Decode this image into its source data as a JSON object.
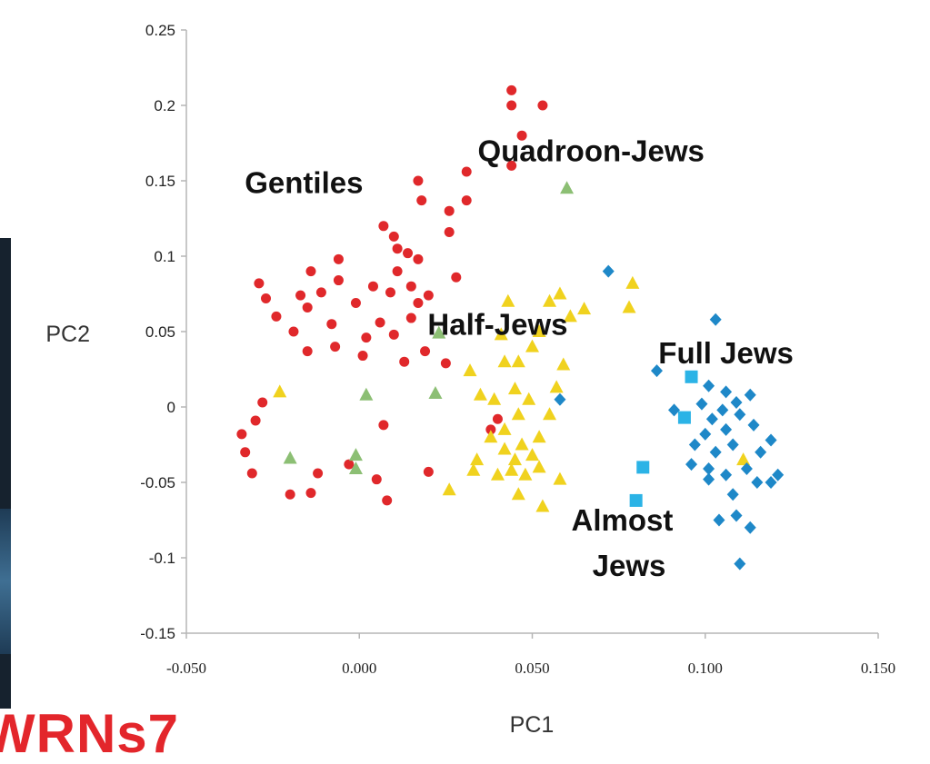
{
  "background_fragment": {
    "text": "WRNs7",
    "color": "#e3262b"
  },
  "chart_data": {
    "type": "scatter",
    "xlabel": "PC1",
    "ylabel": "PC2",
    "xlim": [
      -0.05,
      0.15
    ],
    "ylim": [
      -0.15,
      0.25
    ],
    "x_ticks": [
      "-0.050",
      "0.000",
      "0.050",
      "0.100",
      "0.150"
    ],
    "y_ticks": [
      "0.25",
      "0.2",
      "0.15",
      "0.1",
      "0.05",
      "0",
      "-0.05",
      "-0.1",
      "-0.15"
    ],
    "grid": false,
    "legend": "none",
    "annotations": [
      {
        "text": "Gentiles",
        "x": -0.016,
        "y": 0.142
      },
      {
        "text": "Quadroon-Jews",
        "x": 0.067,
        "y": 0.163
      },
      {
        "text": "Half-Jews",
        "x": 0.04,
        "y": 0.048
      },
      {
        "text": "Full Jews",
        "x": 0.106,
        "y": 0.029
      },
      {
        "text": "Almost",
        "x": 0.076,
        "y": -0.082
      },
      {
        "text": "Jews",
        "x": 0.078,
        "y": -0.112
      }
    ],
    "series": [
      {
        "color": "#e0282b",
        "marker": "circle",
        "points": [
          [
            0.044,
            0.21
          ],
          [
            0.044,
            0.2
          ],
          [
            0.053,
            0.2
          ],
          [
            0.047,
            0.18
          ],
          [
            0.044,
            0.16
          ],
          [
            0.031,
            0.156
          ],
          [
            0.017,
            0.15
          ],
          [
            0.018,
            0.137
          ],
          [
            0.031,
            0.137
          ],
          [
            0.026,
            0.13
          ],
          [
            0.007,
            0.12
          ],
          [
            0.026,
            0.116
          ],
          [
            -0.006,
            0.098
          ],
          [
            0.01,
            0.113
          ],
          [
            -0.014,
            0.09
          ],
          [
            0.011,
            0.105
          ],
          [
            -0.029,
            0.082
          ],
          [
            -0.027,
            0.072
          ],
          [
            -0.017,
            0.074
          ],
          [
            -0.006,
            0.084
          ],
          [
            0.004,
            0.08
          ],
          [
            0.014,
            0.102
          ],
          [
            0.011,
            0.09
          ],
          [
            0.017,
            0.098
          ],
          [
            0.009,
            0.076
          ],
          [
            0.015,
            0.08
          ],
          [
            0.02,
            0.074
          ],
          [
            0.017,
            0.069
          ],
          [
            -0.001,
            0.069
          ],
          [
            -0.011,
            0.076
          ],
          [
            -0.015,
            0.066
          ],
          [
            -0.024,
            0.06
          ],
          [
            0.015,
            0.059
          ],
          [
            0.006,
            0.056
          ],
          [
            -0.019,
            0.05
          ],
          [
            -0.008,
            0.055
          ],
          [
            0.01,
            0.048
          ],
          [
            0.002,
            0.046
          ],
          [
            0.028,
            0.086
          ],
          [
            0.019,
            0.037
          ],
          [
            0.025,
            0.029
          ],
          [
            0.013,
            0.03
          ],
          [
            0.001,
            0.034
          ],
          [
            -0.015,
            0.037
          ],
          [
            -0.007,
            0.04
          ],
          [
            0.008,
            -0.062
          ],
          [
            0.005,
            -0.048
          ],
          [
            0.007,
            -0.012
          ],
          [
            -0.003,
            -0.038
          ],
          [
            0.02,
            -0.043
          ],
          [
            0.038,
            -0.015
          ],
          [
            0.04,
            -0.008
          ],
          [
            -0.033,
            -0.03
          ],
          [
            -0.031,
            -0.044
          ],
          [
            -0.034,
            -0.018
          ],
          [
            -0.02,
            -0.058
          ],
          [
            -0.014,
            -0.057
          ],
          [
            -0.012,
            -0.044
          ],
          [
            -0.03,
            -0.009
          ],
          [
            -0.028,
            0.003
          ]
        ]
      },
      {
        "color": "#f0d21e",
        "marker": "triangle",
        "points": [
          [
            0.043,
            0.07
          ],
          [
            0.055,
            0.07
          ],
          [
            0.065,
            0.065
          ],
          [
            0.079,
            0.082
          ],
          [
            0.078,
            0.066
          ],
          [
            0.061,
            0.06
          ],
          [
            0.058,
            0.075
          ],
          [
            0.041,
            0.048
          ],
          [
            0.052,
            0.05
          ],
          [
            0.05,
            0.04
          ],
          [
            0.046,
            0.03
          ],
          [
            0.032,
            0.024
          ],
          [
            0.042,
            0.03
          ],
          [
            0.059,
            0.028
          ],
          [
            0.057,
            0.013
          ],
          [
            0.035,
            0.008
          ],
          [
            0.045,
            0.012
          ],
          [
            0.049,
            0.005
          ],
          [
            0.039,
            0.005
          ],
          [
            0.046,
            -0.005
          ],
          [
            0.055,
            -0.005
          ],
          [
            0.042,
            -0.015
          ],
          [
            0.038,
            -0.02
          ],
          [
            0.052,
            -0.02
          ],
          [
            0.047,
            -0.025
          ],
          [
            0.045,
            -0.035
          ],
          [
            0.052,
            -0.04
          ],
          [
            0.04,
            -0.045
          ],
          [
            0.048,
            -0.045
          ],
          [
            0.058,
            -0.048
          ],
          [
            0.034,
            -0.035
          ],
          [
            0.033,
            -0.042
          ],
          [
            0.026,
            -0.055
          ],
          [
            0.046,
            -0.058
          ],
          [
            0.053,
            -0.066
          ],
          [
            0.042,
            -0.028
          ],
          [
            0.05,
            -0.032
          ],
          [
            0.044,
            -0.042
          ],
          [
            -0.023,
            0.01
          ],
          [
            0.111,
            -0.035
          ]
        ]
      },
      {
        "color": "#8cbf74",
        "marker": "triangle",
        "points": [
          [
            0.06,
            0.145
          ],
          [
            0.023,
            0.049
          ],
          [
            0.022,
            0.009
          ],
          [
            0.002,
            0.008
          ],
          [
            -0.001,
            -0.032
          ],
          [
            -0.001,
            -0.041
          ],
          [
            -0.02,
            -0.034
          ]
        ]
      },
      {
        "color": "#1e88c8",
        "marker": "diamond",
        "points": [
          [
            0.072,
            0.09
          ],
          [
            0.103,
            0.058
          ],
          [
            0.086,
            0.024
          ],
          [
            0.058,
            0.005
          ],
          [
            0.091,
            -0.002
          ],
          [
            0.101,
            0.014
          ],
          [
            0.106,
            0.01
          ],
          [
            0.109,
            0.003
          ],
          [
            0.113,
            0.008
          ],
          [
            0.099,
            0.002
          ],
          [
            0.105,
            -0.002
          ],
          [
            0.102,
            -0.008
          ],
          [
            0.11,
            -0.005
          ],
          [
            0.106,
            -0.015
          ],
          [
            0.114,
            -0.012
          ],
          [
            0.119,
            -0.022
          ],
          [
            0.1,
            -0.018
          ],
          [
            0.108,
            -0.025
          ],
          [
            0.116,
            -0.03
          ],
          [
            0.103,
            -0.03
          ],
          [
            0.096,
            -0.038
          ],
          [
            0.112,
            -0.041
          ],
          [
            0.121,
            -0.045
          ],
          [
            0.101,
            -0.041
          ],
          [
            0.106,
            -0.045
          ],
          [
            0.115,
            -0.05
          ],
          [
            0.119,
            -0.05
          ],
          [
            0.108,
            -0.058
          ],
          [
            0.104,
            -0.075
          ],
          [
            0.109,
            -0.072
          ],
          [
            0.113,
            -0.08
          ],
          [
            0.11,
            -0.104
          ],
          [
            0.097,
            -0.025
          ],
          [
            0.101,
            -0.048
          ]
        ]
      },
      {
        "color": "#2bb3e6",
        "marker": "square",
        "points": [
          [
            0.096,
            0.02
          ],
          [
            0.094,
            -0.007
          ],
          [
            0.082,
            -0.04
          ],
          [
            0.08,
            -0.062
          ]
        ]
      }
    ]
  }
}
